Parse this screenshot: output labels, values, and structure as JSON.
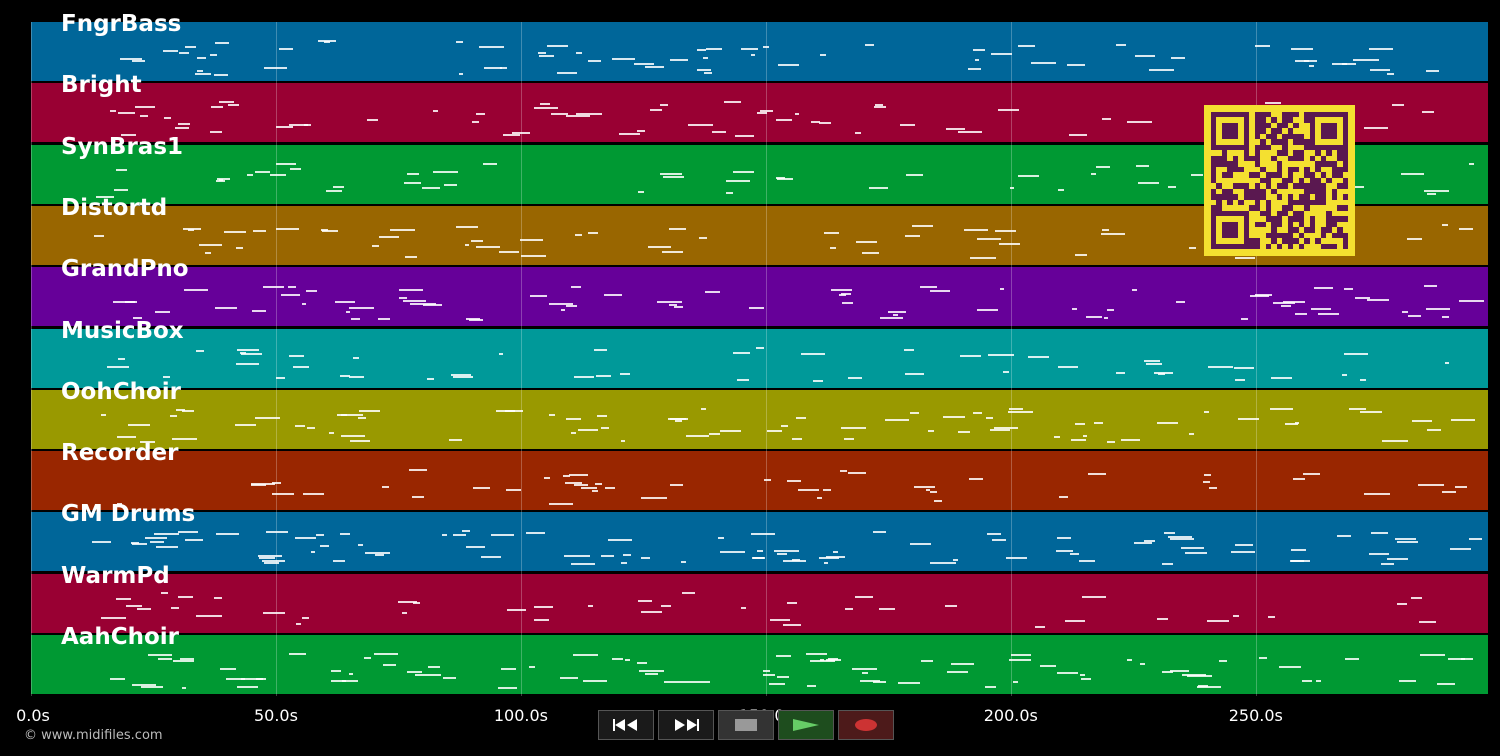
{
  "tracks": [
    {
      "name": "FngrBass",
      "color": "#006699"
    },
    {
      "name": "Bright",
      "color": "#990033"
    },
    {
      "name": "SynBras1",
      "color": "#009933"
    },
    {
      "name": "Distortd",
      "color": "#996600"
    },
    {
      "name": "GrandPno",
      "color": "#660099"
    },
    {
      "name": "MusicBox",
      "color": "#009999"
    },
    {
      "name": "OohChoir",
      "color": "#999900"
    },
    {
      "name": "Recorder",
      "color": "#992600"
    },
    {
      "name": "GM Drums",
      "color": "#006699"
    },
    {
      "name": "WarmPd",
      "color": "#990033"
    },
    {
      "name": "AahChoir",
      "color": "#009933"
    }
  ],
  "time_axis": {
    "ticks": [
      "0.0s",
      "50.0s",
      "100.0s",
      "150.0s",
      "200.0s",
      "250.0s"
    ],
    "tick_values": [
      0,
      50,
      100,
      150,
      200,
      250
    ],
    "max": 297.4
  },
  "transport": {
    "rewind_icon": "rewind-icon",
    "fast_forward_icon": "fast-forward-icon",
    "stop_icon": "stop-icon",
    "play_icon": "play-icon",
    "record_icon": "record-icon",
    "play_color": "#66cc66",
    "record_color": "#cc3333"
  },
  "copyright": "© www.midifiles.com",
  "qr_icon": "qr-code-icon"
}
